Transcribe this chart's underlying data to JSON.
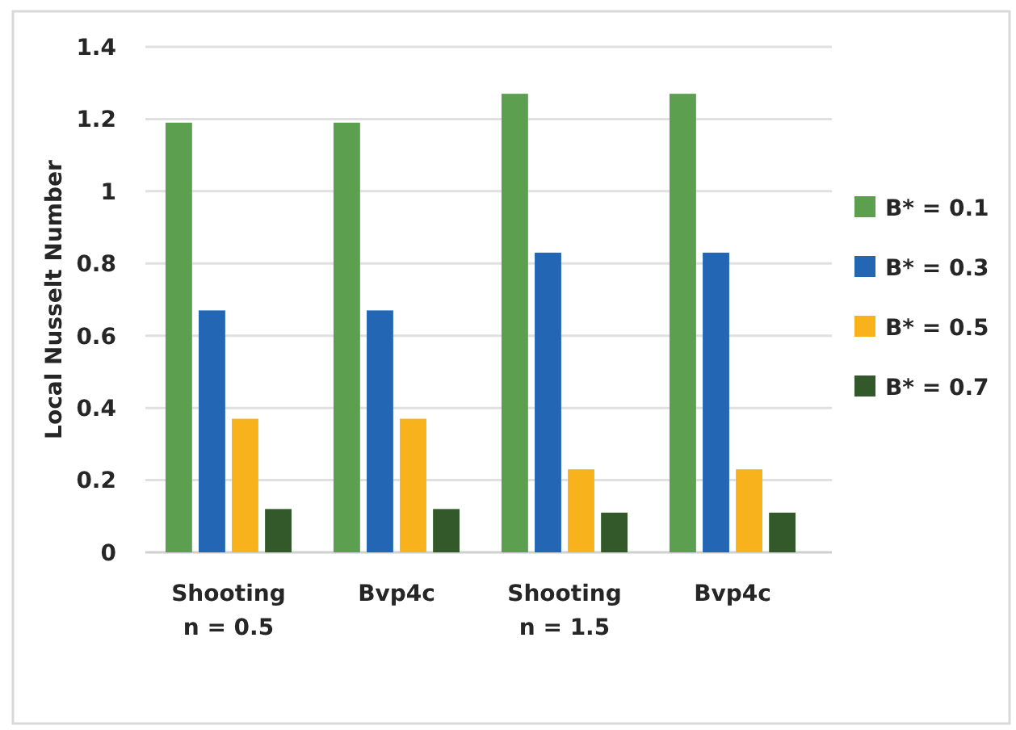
{
  "chart_data": {
    "type": "bar",
    "ylabel": "Local Nusselt Number",
    "categories": [
      "Shooting\nn = 0.5",
      "Bvp4c",
      "Shooting\nn = 1.5",
      "Bvp4c"
    ],
    "series": [
      {
        "name": "B* = 0.1",
        "color": "#5b9f4f",
        "values": [
          1.19,
          1.19,
          1.27,
          1.27
        ]
      },
      {
        "name": "B* = 0.3",
        "color": "#2367b4",
        "values": [
          0.67,
          0.67,
          0.83,
          0.83
        ]
      },
      {
        "name": "B* = 0.5",
        "color": "#f8b21c",
        "values": [
          0.37,
          0.37,
          0.23,
          0.23
        ]
      },
      {
        "name": "B* = 0.7",
        "color": "#33592a",
        "values": [
          0.12,
          0.12,
          0.11,
          0.11
        ]
      }
    ],
    "ylim": [
      0,
      1.4
    ],
    "yticks": [
      0,
      0.2,
      0.4,
      0.6,
      0.8,
      1,
      1.2,
      1.4
    ],
    "grid": "y",
    "legend": "right"
  }
}
